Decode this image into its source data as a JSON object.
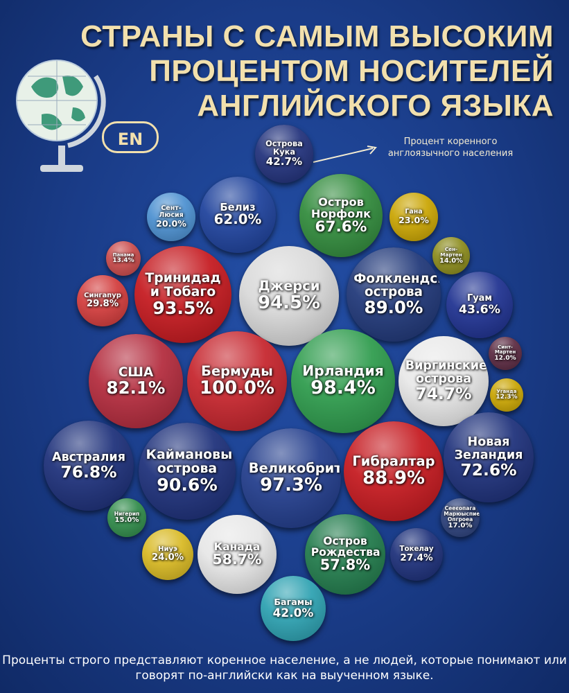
{
  "title": [
    "СТРАНЫ С САМЫМ ВЫСОКИМ",
    "ПРОЦЕНТОМ НОСИТЕЛЕЙ",
    "АНГЛИЙСКОГО ЯЗЫКА"
  ],
  "badge": "EN",
  "annotation": "Процент коренного англоязычного населения",
  "footer": "Проценты строго представляют коренное население, а не людей, которые понимают или говорят по-английски как на выученном языке.",
  "colors": {
    "background": "#1a3c88",
    "title": "#f2e0ad"
  },
  "chart_data": {
    "type": "bubble",
    "unit": "%",
    "items": [
      {
        "name": "Острова Кука",
        "value": 42.7,
        "color": "#1f2f7a"
      },
      {
        "name": "Белиз",
        "value": 62.0,
        "color": "#1b3f9a"
      },
      {
        "name": "Остров Норфолк",
        "value": 67.6,
        "color": "#2f8a3a"
      },
      {
        "name": "Сент-Люсия",
        "value": 20.0,
        "color": "#4a8fd0"
      },
      {
        "name": "Гана",
        "value": 23.0,
        "color": "#c9a400"
      },
      {
        "name": "Панама",
        "value": 13.4,
        "color": "#c84848"
      },
      {
        "name": "Сен-Мартен",
        "value": 14.0,
        "color": "#8a8a1a"
      },
      {
        "name": "Тринидад и Тобаго",
        "value": 93.5,
        "color": "#c4161c"
      },
      {
        "name": "Джерси",
        "value": 94.5,
        "color": "#d8d8d8"
      },
      {
        "name": "Фолклендские острова",
        "value": 89.0,
        "color": "#1d3577"
      },
      {
        "name": "Гуам",
        "value": 43.6,
        "color": "#1c2f8f"
      },
      {
        "name": "Сингапур",
        "value": 29.8,
        "color": "#d23a3a"
      },
      {
        "name": "Синт-Мартен",
        "value": 12.0,
        "color": "#5a2840"
      },
      {
        "name": "США",
        "value": 82.1,
        "color": "#b2283a"
      },
      {
        "name": "Бермуды",
        "value": 100.0,
        "color": "#c5222a"
      },
      {
        "name": "Ирландия",
        "value": 98.4,
        "color": "#2b9a4a"
      },
      {
        "name": "Виргинские острова",
        "value": 74.7,
        "color": "#e8e8e8"
      },
      {
        "name": "Уганда",
        "value": 12.3,
        "color": "#c9a400"
      },
      {
        "name": "Австралия",
        "value": 76.8,
        "color": "#1a2d78"
      },
      {
        "name": "Каймановы острова",
        "value": 90.6,
        "color": "#1a2d78"
      },
      {
        "name": "Великобритания",
        "value": 97.3,
        "color": "#1f3a8a"
      },
      {
        "name": "Гибралтар",
        "value": 88.9,
        "color": "#c4161c"
      },
      {
        "name": "Новая Зеландия",
        "value": 72.6,
        "color": "#1a2d78"
      },
      {
        "name": "Нигерип",
        "value": 15.0,
        "color": "#2e8a48"
      },
      {
        "name": "Сееєопага Марюыспие Опгроеа",
        "value": 17.0,
        "color": "#2a3f7a"
      },
      {
        "name": "Ниуэ",
        "value": 24.0,
        "color": "#d8b820"
      },
      {
        "name": "Канада",
        "value": 58.7,
        "color": "#e6e6e6"
      },
      {
        "name": "Остров Рождества",
        "value": 57.8,
        "color": "#1f7a4a"
      },
      {
        "name": "Токелау",
        "value": 27.4,
        "color": "#1a2d78"
      },
      {
        "name": "Багамы",
        "value": 42.0,
        "color": "#2aa0b0"
      }
    ]
  }
}
